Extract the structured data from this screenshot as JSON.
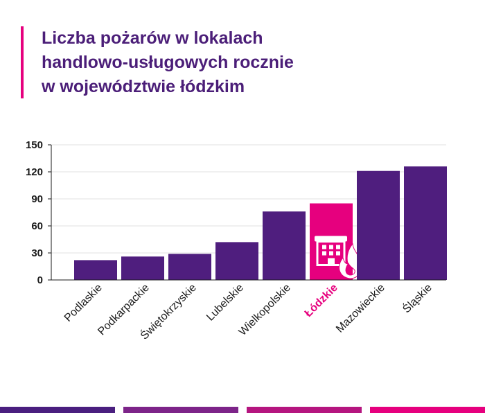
{
  "title": {
    "line1": "Liczba pożarów w lokalach",
    "line2": "handlowo-usługowych rocznie",
    "line3": "w województwie łódzkim"
  },
  "colors": {
    "bar": "#4f1e7e",
    "highlight": "#e6007e",
    "title": "#4b1e78",
    "axis_text": "#1a1a1a",
    "footer": [
      "#4a1f7f",
      "#7d2489",
      "#b5157f",
      "#e6007e"
    ]
  },
  "chart_data": {
    "type": "bar",
    "title": "Liczba pożarów w lokalach handlowo-usługowych rocznie w województwie łódzkim",
    "categories": [
      "Podlaskie",
      "Podkarpackie",
      "Świętokrzyskie",
      "Lubelskie",
      "Wielkopolskie",
      "Łódzkie",
      "Mazowieckie",
      "Śląskie"
    ],
    "values": [
      22,
      26,
      29,
      42,
      76,
      85,
      121,
      126
    ],
    "highlight": "Łódzkie",
    "highlight_icon": "building-fire-icon",
    "ylim": [
      0,
      150
    ],
    "yticks": [
      "0",
      "30",
      "60",
      "90",
      "120",
      "150"
    ],
    "xlabel": "",
    "ylabel": "",
    "grid": true
  }
}
